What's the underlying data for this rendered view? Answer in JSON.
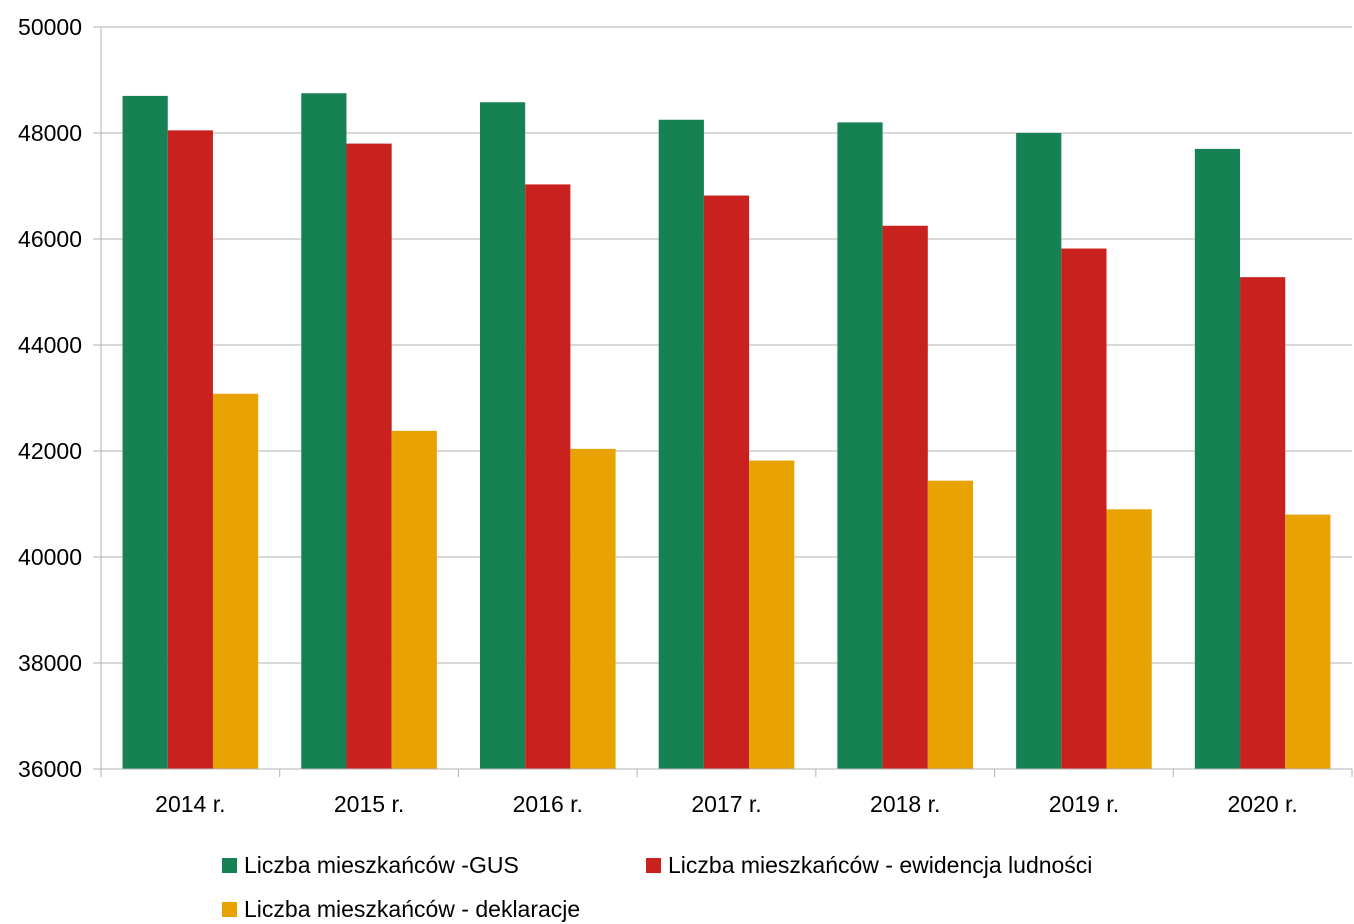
{
  "chart_data": {
    "type": "bar",
    "categories": [
      "2014 r.",
      "2015 r.",
      "2016 r.",
      "2017 r.",
      "2018 r.",
      "2019 r.",
      "2020 r."
    ],
    "series": [
      {
        "name": "Liczba mieszkańców -GUS",
        "color": "#168153",
        "values": [
          48700,
          48750,
          48580,
          48250,
          48200,
          48000,
          47700
        ]
      },
      {
        "name": "Liczba mieszkańców - ewidencja ludności",
        "color": "#c9211e",
        "values": [
          48050,
          47800,
          47030,
          46820,
          46250,
          45820,
          45280
        ]
      },
      {
        "name": "Liczba mieszkańców - deklaracje",
        "color": "#e8a202",
        "values": [
          43080,
          42380,
          42040,
          41820,
          41440,
          40900,
          40800
        ]
      }
    ],
    "ylim": [
      36000,
      50000
    ],
    "yticks": [
      "36000",
      "38000",
      "40000",
      "42000",
      "44000",
      "46000",
      "48000",
      "50000"
    ],
    "grid": true,
    "legend_position": "bottom"
  }
}
